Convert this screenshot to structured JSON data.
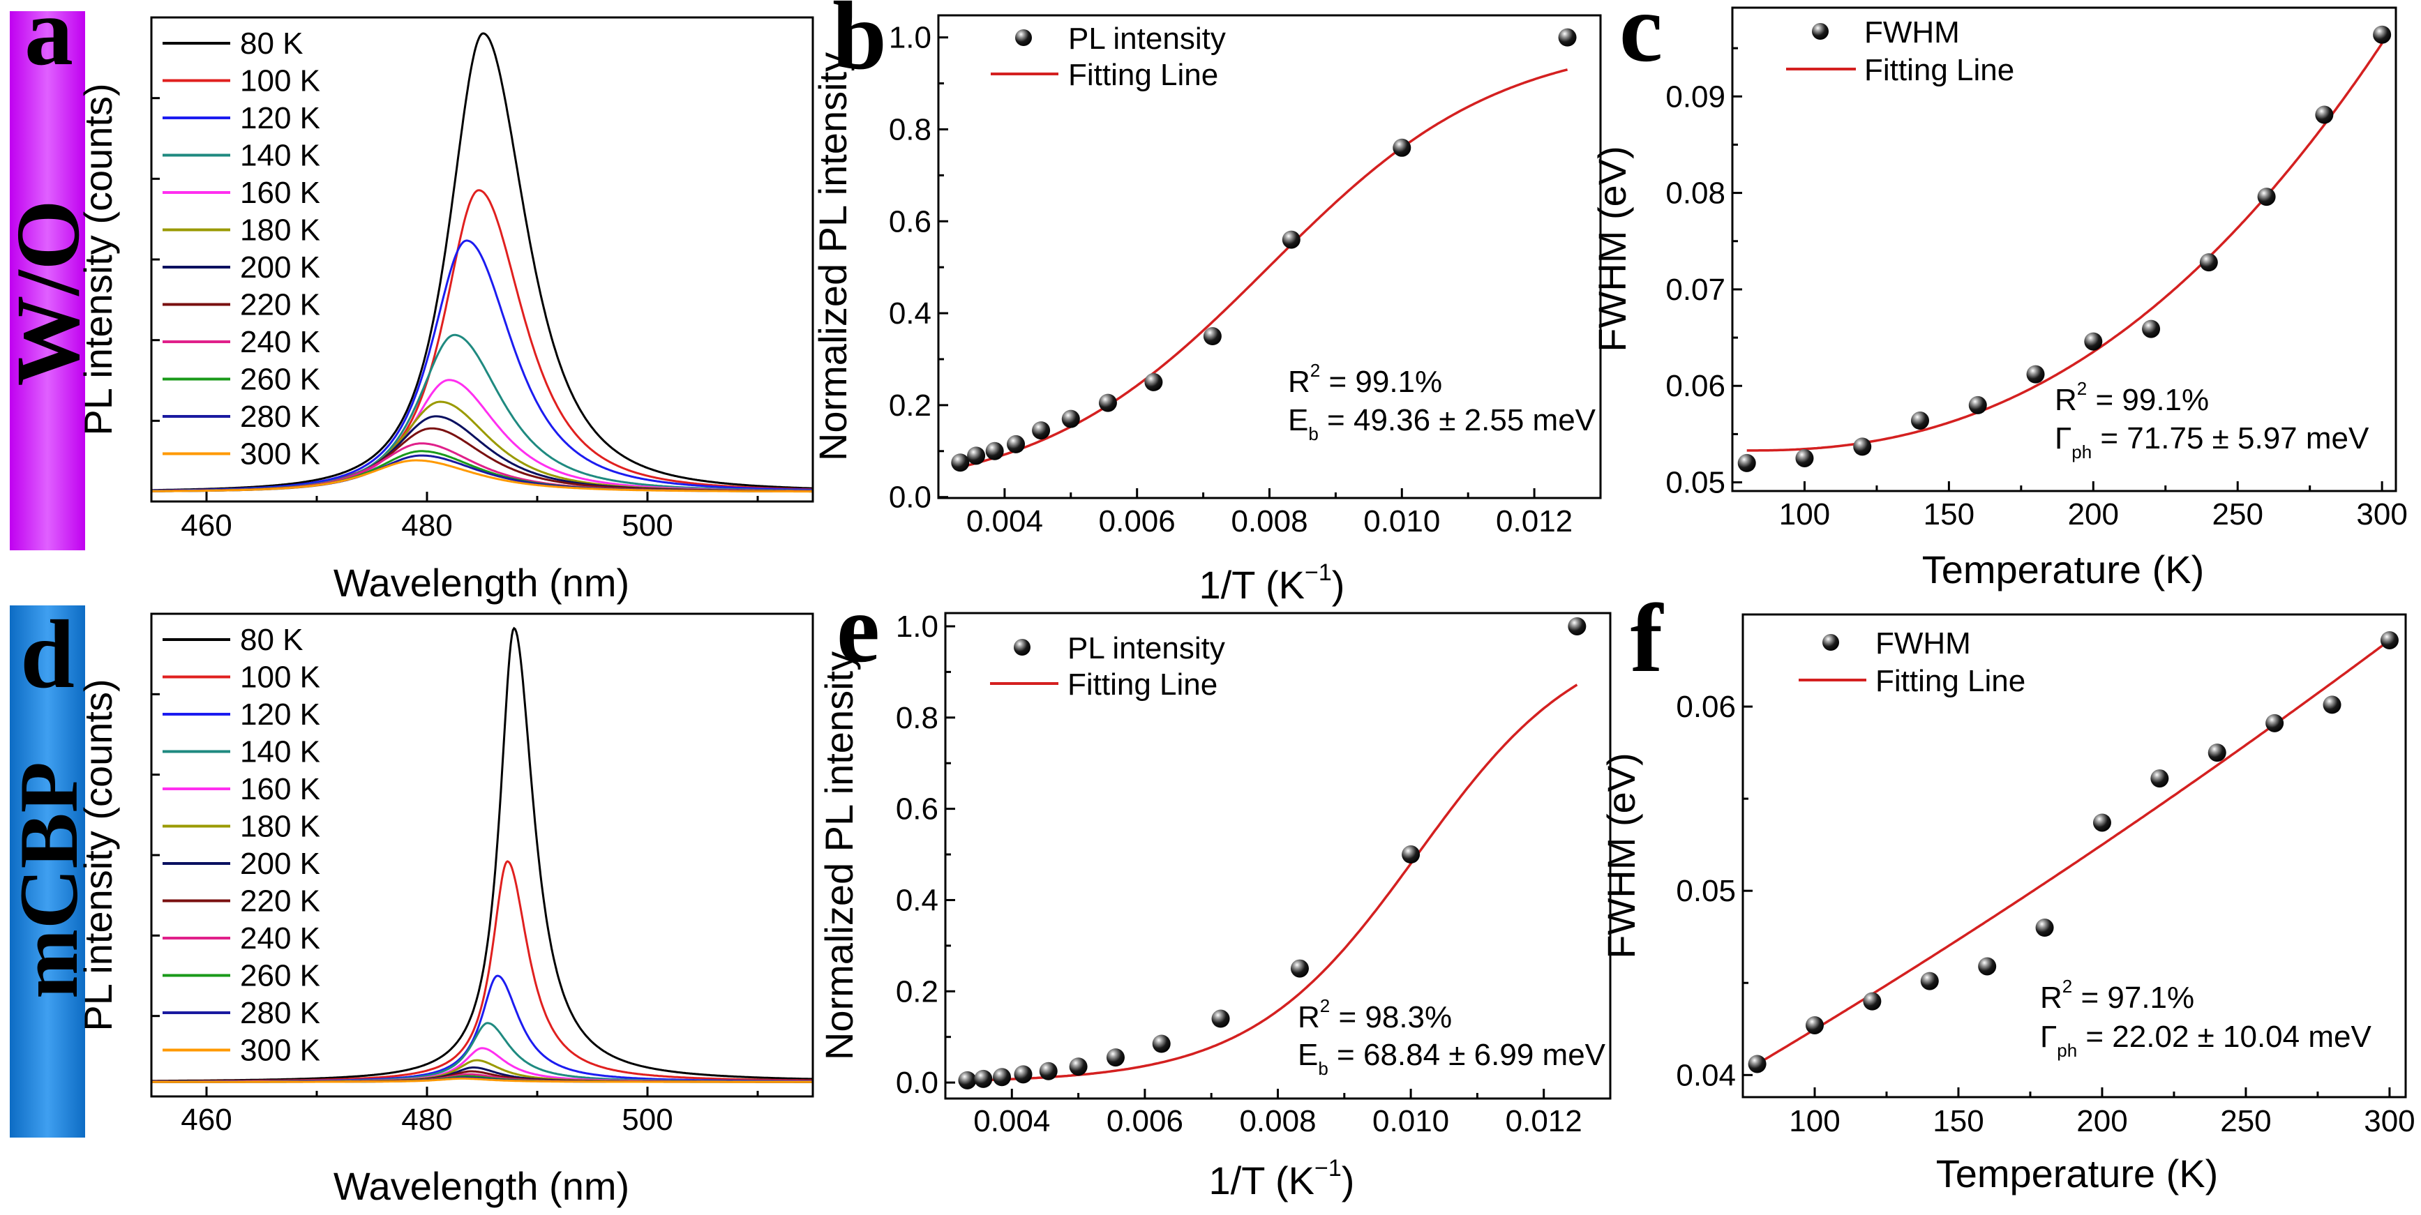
{
  "side_labels": [
    {
      "letter": "a",
      "label": "W/O",
      "color": "#cc11ff"
    },
    {
      "letter": "d",
      "label": "mCBP",
      "color": "#1a7fd4"
    }
  ],
  "chart_data": [
    {
      "id": "a",
      "letter": "a",
      "type": "line",
      "xlabel": "Wavelength (nm)",
      "ylabel": "PL intensity (counts)",
      "xlim": [
        455,
        515
      ],
      "ylim": [
        0,
        1
      ],
      "xticks": [
        460,
        480,
        500
      ],
      "xtick_labels": [
        "460",
        "480",
        "500"
      ],
      "note": "relative intensity, y axis unlabeled",
      "baseline": 0.02,
      "shape_exponent": 1.5,
      "series": [
        {
          "name": "80 K",
          "color": "#000000",
          "center": 485.1,
          "amplitude": 0.947,
          "width_left": 4.7,
          "width_right": 6.0
        },
        {
          "name": "100 K",
          "color": "#e0201f",
          "center": 484.7,
          "amplitude": 0.623,
          "width_left": 4.8,
          "width_right": 6.2
        },
        {
          "name": "120 K",
          "color": "#1c1cf0",
          "center": 483.6,
          "amplitude": 0.519,
          "width_left": 4.9,
          "width_right": 6.4
        },
        {
          "name": "140 K",
          "color": "#1f8a80",
          "center": 482.5,
          "amplitude": 0.324,
          "width_left": 5.0,
          "width_right": 6.6
        },
        {
          "name": "160 K",
          "color": "#ff2ff0",
          "center": 482.0,
          "amplitude": 0.231,
          "width_left": 5.2,
          "width_right": 6.8
        },
        {
          "name": "180 K",
          "color": "#9a9a00",
          "center": 481.2,
          "amplitude": 0.186,
          "width_left": 5.4,
          "width_right": 7.0
        },
        {
          "name": "200 K",
          "color": "#0a1060",
          "center": 480.8,
          "amplitude": 0.156,
          "width_left": 5.6,
          "width_right": 7.2
        },
        {
          "name": "220 K",
          "color": "#7a1010",
          "center": 480.4,
          "amplitude": 0.131,
          "width_left": 5.8,
          "width_right": 7.4
        },
        {
          "name": "240 K",
          "color": "#e0208a",
          "center": 479.5,
          "amplitude": 0.1,
          "width_left": 6.0,
          "width_right": 7.6
        },
        {
          "name": "260 K",
          "color": "#1a9a1a",
          "center": 479.5,
          "amplitude": 0.084,
          "width_left": 6.2,
          "width_right": 7.8
        },
        {
          "name": "280 K",
          "color": "#1a1aa0",
          "center": 479.5,
          "amplitude": 0.075,
          "width_left": 6.4,
          "width_right": 8.0
        },
        {
          "name": "300 K",
          "color": "#ff9900",
          "center": 479.0,
          "amplitude": 0.065,
          "width_left": 6.6,
          "width_right": 8.2
        }
      ]
    },
    {
      "id": "b",
      "letter": "b",
      "type": "scatter",
      "xlabel": {
        "main": "1/T (K",
        "sup": "−1",
        "end": ")"
      },
      "ylabel": "Normalized PL intensity",
      "xlim": [
        0.003,
        0.013
      ],
      "ylim": [
        -0.002,
        1.048
      ],
      "xticks": [
        0.004,
        0.006,
        0.008,
        0.01,
        0.012
      ],
      "xtick_labels": [
        "0.004",
        "0.006",
        "0.008",
        "0.010",
        "0.012"
      ],
      "yticks": [
        0.0,
        0.2,
        0.4,
        0.6,
        0.8,
        1.0
      ],
      "ytick_labels": [
        "0.0",
        "0.2",
        "0.4",
        "0.6",
        "0.8",
        "1.0"
      ],
      "legend": {
        "points": "PL intensity",
        "fit": "Fitting Line"
      },
      "x": [
        0.00333,
        0.00357,
        0.00385,
        0.00417,
        0.00455,
        0.005,
        0.00556,
        0.00625,
        0.00714,
        0.00833,
        0.01,
        0.0125
      ],
      "y": [
        0.075,
        0.09,
        0.1,
        0.115,
        0.145,
        0.17,
        0.205,
        0.25,
        0.35,
        0.56,
        0.76,
        1.0
      ],
      "fit": {
        "model": "arrhenius",
        "A": 97,
        "Eb_eV": 0.04936,
        "range": [
          0.00333,
          0.0125
        ]
      },
      "annotation": {
        "r2": {
          "lhs": "R",
          "sup": "2",
          "rhs": " = 99.1%"
        },
        "param": {
          "lhs": "E",
          "sub": "b",
          "rhs": " = 49.36 ± 2.55 meV"
        }
      }
    },
    {
      "id": "c",
      "letter": "c",
      "type": "scatter",
      "xlabel": "Temperature (K)",
      "ylabel": "FWHM (eV)",
      "xlim": [
        75,
        304.8
      ],
      "ylim": [
        0.0491,
        0.0992
      ],
      "xticks": [
        100,
        150,
        200,
        250,
        300
      ],
      "xtick_labels": [
        "100",
        "150",
        "200",
        "250",
        "300"
      ],
      "yticks": [
        0.05,
        0.06,
        0.07,
        0.08,
        0.09
      ],
      "ytick_labels": [
        "0.05",
        "0.06",
        "0.07",
        "0.08",
        "0.09"
      ],
      "legend": {
        "points": "FWHM",
        "fit": "Fitting Line"
      },
      "x": [
        80,
        100,
        120,
        140,
        160,
        180,
        200,
        220,
        240,
        260,
        280,
        300
      ],
      "y": [
        0.052,
        0.0525,
        0.0537,
        0.0564,
        0.058,
        0.0612,
        0.0646,
        0.0659,
        0.0728,
        0.0796,
        0.0881,
        0.0964
      ],
      "fit": {
        "model": "power",
        "y0": 0.0533,
        "dy": 0.0422,
        "x0": 80,
        "span": 220,
        "n": 2.34,
        "range": [
          80,
          300
        ]
      },
      "annotation": {
        "r2": {
          "lhs": "R",
          "sup": "2",
          "rhs": " = 99.1%"
        },
        "param": {
          "lhs": "Γ",
          "sub": "ph",
          "rhs": " = 71.75 ± 5.97 meV"
        }
      }
    },
    {
      "id": "d",
      "letter": "d",
      "type": "line",
      "xlabel": "Wavelength (nm)",
      "ylabel": "PL intensity (counts)",
      "xlim": [
        455,
        515
      ],
      "ylim": [
        0,
        1
      ],
      "xticks": [
        460,
        480,
        500
      ],
      "xtick_labels": [
        "460",
        "480",
        "500"
      ],
      "note": "relative intensity, y axis unlabeled",
      "baseline": 0.03,
      "shape_exponent": 1.0,
      "series": [
        {
          "name": "80 K",
          "color": "#000000",
          "center": 487.9,
          "amplitude": 0.94,
          "width_left": 1.6,
          "width_right": 2.2
        },
        {
          "name": "100 K",
          "color": "#e0201f",
          "center": 487.3,
          "amplitude": 0.457,
          "width_left": 1.7,
          "width_right": 2.3
        },
        {
          "name": "120 K",
          "color": "#1c1cf0",
          "center": 486.4,
          "amplitude": 0.22,
          "width_left": 1.8,
          "width_right": 2.4
        },
        {
          "name": "140 K",
          "color": "#1f8a80",
          "center": 485.5,
          "amplitude": 0.122,
          "width_left": 1.9,
          "width_right": 2.5
        },
        {
          "name": "160 K",
          "color": "#ff2ff0",
          "center": 485.0,
          "amplitude": 0.07,
          "width_left": 2.0,
          "width_right": 2.6
        },
        {
          "name": "180 K",
          "color": "#9a9a00",
          "center": 484.5,
          "amplitude": 0.045,
          "width_left": 2.1,
          "width_right": 2.7
        },
        {
          "name": "200 K",
          "color": "#0a1060",
          "center": 484.2,
          "amplitude": 0.03,
          "width_left": 2.2,
          "width_right": 2.8
        },
        {
          "name": "220 K",
          "color": "#7a1010",
          "center": 484.0,
          "amplitude": 0.022,
          "width_left": 2.3,
          "width_right": 2.9
        },
        {
          "name": "240 K",
          "color": "#e0208a",
          "center": 483.8,
          "amplitude": 0.016,
          "width_left": 2.4,
          "width_right": 3.0
        },
        {
          "name": "260 K",
          "color": "#1a9a1a",
          "center": 483.6,
          "amplitude": 0.012,
          "width_left": 2.5,
          "width_right": 3.1
        },
        {
          "name": "280 K",
          "color": "#1a1aa0",
          "center": 483.4,
          "amplitude": 0.009,
          "width_left": 2.6,
          "width_right": 3.2
        },
        {
          "name": "300 K",
          "color": "#ff9900",
          "center": 483.2,
          "amplitude": 0.007,
          "width_left": 2.7,
          "width_right": 3.3
        }
      ]
    },
    {
      "id": "e",
      "letter": "e",
      "type": "scatter",
      "xlabel": {
        "main": "1/T (K",
        "sup": "−1",
        "end": ")"
      },
      "ylabel": "Normalized PL intensity",
      "xlim": [
        0.003,
        0.013
      ],
      "ylim": [
        -0.035,
        1.029
      ],
      "xticks": [
        0.004,
        0.006,
        0.008,
        0.01,
        0.012
      ],
      "xtick_labels": [
        "0.004",
        "0.006",
        "0.008",
        "0.010",
        "0.012"
      ],
      "yticks": [
        0.0,
        0.2,
        0.4,
        0.6,
        0.8,
        1.0
      ],
      "ytick_labels": [
        "0.0",
        "0.2",
        "0.4",
        "0.6",
        "0.8",
        "1.0"
      ],
      "legend": {
        "points": "PL intensity",
        "fit": "Fitting Line"
      },
      "x": [
        0.00333,
        0.00357,
        0.00385,
        0.00417,
        0.00455,
        0.005,
        0.00556,
        0.00625,
        0.00714,
        0.00833,
        0.01,
        0.0125
      ],
      "y": [
        0.005,
        0.008,
        0.012,
        0.018,
        0.025,
        0.035,
        0.055,
        0.085,
        0.14,
        0.25,
        0.5,
        1.0
      ],
      "fit": {
        "model": "arrhenius",
        "A": 3195,
        "Eb_eV": 0.06884,
        "range": [
          0.00333,
          0.0125
        ]
      },
      "annotation": {
        "r2": {
          "lhs": "R",
          "sup": "2",
          "rhs": " = 98.3%"
        },
        "param": {
          "lhs": "E",
          "sub": "b",
          "rhs": " = 68.84 ± 6.99 meV"
        }
      }
    },
    {
      "id": "f",
      "letter": "f",
      "type": "scatter",
      "xlabel": "Temperature (K)",
      "ylabel": "FWHM (eV)",
      "xlim": [
        75,
        305.6
      ],
      "ylim": [
        0.0388,
        0.065
      ],
      "xticks": [
        100,
        150,
        200,
        250,
        300
      ],
      "xtick_labels": [
        "100",
        "150",
        "200",
        "250",
        "300"
      ],
      "yticks": [
        0.04,
        0.05,
        0.06
      ],
      "ytick_labels": [
        "0.04",
        "0.05",
        "0.06"
      ],
      "legend": {
        "points": "FWHM",
        "fit": "Fitting Line"
      },
      "x": [
        80,
        100,
        120,
        140,
        160,
        180,
        200,
        220,
        240,
        260,
        280,
        300
      ],
      "y": [
        0.0406,
        0.0427,
        0.044,
        0.0451,
        0.0459,
        0.048,
        0.0537,
        0.0561,
        0.0575,
        0.0591,
        0.0601,
        0.0636
      ],
      "fit": {
        "model": "quadratic",
        "y0": 0.0406,
        "x0": 80,
        "a": 9.271e-05,
        "b": 5.38e-08,
        "range": [
          80,
          300
        ]
      },
      "annotation": {
        "r2": {
          "lhs": "R",
          "sup": "2",
          "rhs": " = 97.1%"
        },
        "param": {
          "lhs": "Γ",
          "sub": "ph",
          "rhs": " = 22.02 ± 10.04 meV"
        }
      }
    }
  ],
  "colors": {
    "fit_line": "#d42020",
    "axis": "#000000",
    "marker": "#111111"
  }
}
